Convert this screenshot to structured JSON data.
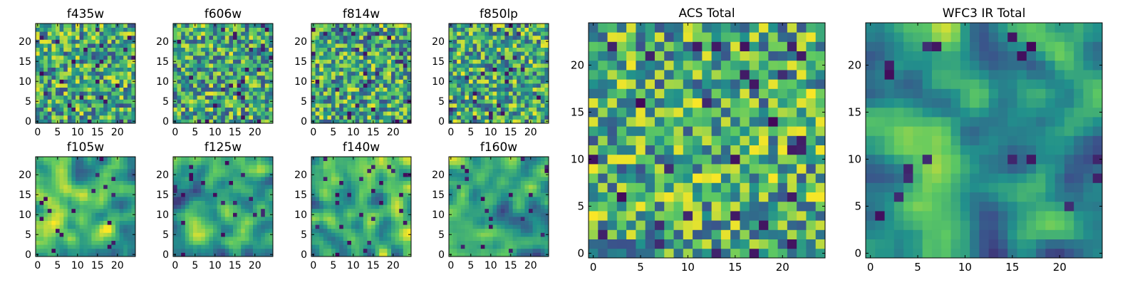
{
  "figure": {
    "description_free": true,
    "colormap": "viridis",
    "palette": [
      "#440154",
      "#3b528b",
      "#21918c",
      "#5ec962",
      "#fde725"
    ]
  },
  "chart_data": [
    {
      "type": "heatmap",
      "title": "f435w",
      "seed": 11,
      "bias": 0.6,
      "smooth": 0,
      "nx": 25,
      "ny": 25,
      "xlim": [
        0,
        24
      ],
      "ylim": [
        0,
        24
      ],
      "xticks": [
        0,
        5,
        10,
        15,
        20
      ],
      "yticks": [
        0,
        5,
        10,
        15,
        20
      ]
    },
    {
      "type": "heatmap",
      "title": "f606w",
      "seed": 23,
      "bias": 0.6,
      "smooth": 0,
      "nx": 25,
      "ny": 25,
      "xlim": [
        0,
        24
      ],
      "ylim": [
        0,
        24
      ],
      "xticks": [
        0,
        5,
        10,
        15,
        20
      ],
      "yticks": [
        0,
        5,
        10,
        15,
        20
      ]
    },
    {
      "type": "heatmap",
      "title": "f814w",
      "seed": 37,
      "bias": 0.6,
      "smooth": 0,
      "nx": 25,
      "ny": 25,
      "xlim": [
        0,
        24
      ],
      "ylim": [
        0,
        24
      ],
      "xticks": [
        0,
        5,
        10,
        15,
        20
      ],
      "yticks": [
        0,
        5,
        10,
        15,
        20
      ]
    },
    {
      "type": "heatmap",
      "title": "f850lp",
      "seed": 41,
      "bias": 0.6,
      "smooth": 0,
      "nx": 25,
      "ny": 25,
      "xlim": [
        0,
        24
      ],
      "ylim": [
        0,
        24
      ],
      "xticks": [
        0,
        5,
        10,
        15,
        20
      ],
      "yticks": [
        0,
        5,
        10,
        15,
        20
      ]
    },
    {
      "type": "heatmap",
      "title": "f105w",
      "seed": 53,
      "bias": 0.65,
      "smooth": 1,
      "nx": 25,
      "ny": 25,
      "xlim": [
        0,
        24
      ],
      "ylim": [
        0,
        24
      ],
      "xticks": [
        0,
        5,
        10,
        15,
        20
      ],
      "yticks": [
        0,
        5,
        10,
        15,
        20
      ]
    },
    {
      "type": "heatmap",
      "title": "f125w",
      "seed": 67,
      "bias": 0.55,
      "smooth": 1,
      "nx": 25,
      "ny": 25,
      "xlim": [
        0,
        24
      ],
      "ylim": [
        0,
        24
      ],
      "xticks": [
        0,
        5,
        10,
        15,
        20
      ],
      "yticks": [
        0,
        5,
        10,
        15,
        20
      ]
    },
    {
      "type": "heatmap",
      "title": "f140w",
      "seed": 79,
      "bias": 0.62,
      "smooth": 1,
      "nx": 25,
      "ny": 25,
      "xlim": [
        0,
        24
      ],
      "ylim": [
        0,
        24
      ],
      "xticks": [
        0,
        5,
        10,
        15,
        20
      ],
      "yticks": [
        0,
        5,
        10,
        15,
        20
      ]
    },
    {
      "type": "heatmap",
      "title": "f160w",
      "seed": 83,
      "bias": 0.58,
      "smooth": 1,
      "nx": 25,
      "ny": 25,
      "xlim": [
        0,
        24
      ],
      "ylim": [
        0,
        24
      ],
      "xticks": [
        0,
        5,
        10,
        15,
        20
      ],
      "yticks": [
        0,
        5,
        10,
        15,
        20
      ]
    },
    {
      "type": "heatmap",
      "title": "ACS Total",
      "seed": 97,
      "bias": 0.62,
      "smooth": 0,
      "nx": 25,
      "ny": 25,
      "xlim": [
        0,
        24
      ],
      "ylim": [
        0,
        24
      ],
      "xticks": [
        0,
        5,
        10,
        15,
        20
      ],
      "yticks": [
        0,
        5,
        10,
        15,
        20
      ]
    },
    {
      "type": "heatmap",
      "title": "WFC3 IR Total",
      "seed": 101,
      "bias": 0.55,
      "smooth": 1,
      "nx": 25,
      "ny": 25,
      "xlim": [
        0,
        24
      ],
      "ylim": [
        0,
        24
      ],
      "xticks": [
        0,
        5,
        10,
        15,
        20
      ],
      "yticks": [
        0,
        5,
        10,
        15,
        20
      ]
    }
  ]
}
